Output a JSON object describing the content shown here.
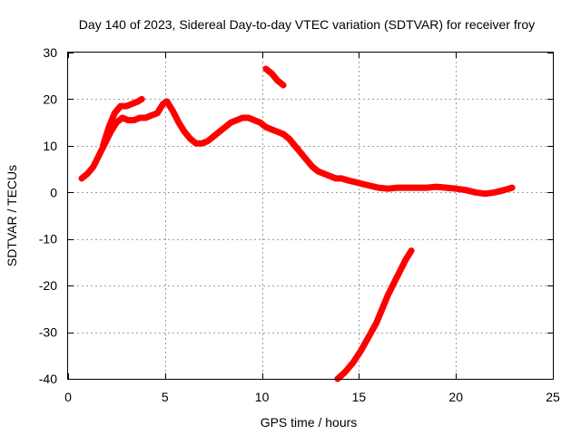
{
  "chart_data": {
    "type": "line",
    "title": "Day 140 of 2023, Sidereal Day-to-day VTEC variation (SDTVAR) for receiver froy",
    "xlabel": "GPS time / hours",
    "ylabel": "SDTVAR / TECUs",
    "xlim": [
      0,
      25
    ],
    "ylim": [
      -40,
      30
    ],
    "xticks": [
      0,
      5,
      10,
      15,
      20,
      25
    ],
    "xtick_labels": [
      "0",
      "5",
      "10",
      "15",
      "20",
      "25"
    ],
    "yticks": [
      -40,
      -30,
      -20,
      -10,
      0,
      10,
      20,
      30
    ],
    "ytick_labels": [
      "-40",
      "-30",
      "-20",
      "-10",
      "0",
      "10",
      "20",
      "30"
    ],
    "grid": true,
    "series_color": "#ff0000",
    "series": [
      {
        "name": "main-arc",
        "x": [
          0.7,
          1.0,
          1.3,
          1.6,
          1.9,
          2.2,
          2.5,
          2.8,
          3.1,
          3.4,
          3.7,
          4.0,
          4.3,
          4.6,
          4.9,
          5.1,
          5.4,
          5.7,
          6.0,
          6.3,
          6.6,
          6.9,
          7.2,
          7.5,
          7.8,
          8.1,
          8.4,
          8.7,
          9.0,
          9.3,
          9.6,
          9.9,
          10.2,
          10.5,
          10.8,
          11.1,
          11.4,
          11.7,
          12.0,
          12.3,
          12.6,
          12.9,
          13.2,
          13.5,
          13.8,
          14.1,
          14.5,
          15.0,
          15.5,
          16.0,
          16.5,
          17.0,
          17.5,
          18.0,
          18.5,
          19.0,
          19.5,
          20.0,
          20.5,
          21.0,
          21.5,
          22.0,
          22.5,
          22.9
        ],
        "y": [
          3,
          4,
          5.5,
          8,
          10.5,
          13,
          15,
          16,
          15.5,
          15.5,
          16,
          16,
          16.5,
          17,
          19,
          19.5,
          17.5,
          15,
          13,
          11.5,
          10.5,
          10.5,
          11,
          12,
          13,
          14,
          15,
          15.5,
          16,
          16,
          15.5,
          15,
          14,
          13.5,
          13,
          12.5,
          11.5,
          10,
          8.5,
          7,
          5.5,
          4.5,
          4,
          3.5,
          3,
          3,
          2.5,
          2,
          1.5,
          1,
          0.8,
          1,
          1,
          1,
          1,
          1.2,
          1,
          0.8,
          0.5,
          0,
          -0.3,
          0,
          0.5,
          1
        ]
      },
      {
        "name": "upper-branch",
        "x": [
          1.8,
          2.1,
          2.4,
          2.7,
          3.0,
          3.3,
          3.6,
          3.8
        ],
        "y": [
          10,
          14,
          17,
          18.5,
          18.5,
          19,
          19.5,
          20
        ]
      },
      {
        "name": "late-arc",
        "x": [
          10.2,
          10.5,
          10.8,
          11.1
        ],
        "y": [
          26.5,
          25.5,
          24,
          23
        ]
      },
      {
        "name": "descending-arc",
        "x": [
          13.9,
          14.3,
          14.7,
          15.1,
          15.5,
          15.9,
          16.2,
          16.5,
          16.8,
          17.1,
          17.4,
          17.7
        ],
        "y": [
          -40,
          -38.5,
          -36.5,
          -34,
          -31,
          -28,
          -25,
          -22,
          -19.5,
          -17,
          -14.5,
          -12.5
        ]
      }
    ]
  }
}
